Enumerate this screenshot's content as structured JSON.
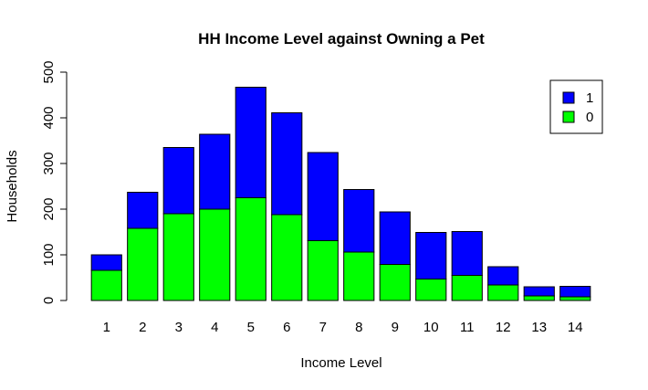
{
  "chart_data": {
    "type": "bar",
    "stacked": true,
    "title": "HH Income Level against Owning a Pet",
    "xlabel": "Income Level",
    "ylabel": "Households",
    "ylim": [
      0,
      500
    ],
    "yticks": [
      0,
      100,
      200,
      300,
      400,
      500
    ],
    "categories": [
      "1",
      "2",
      "3",
      "4",
      "5",
      "6",
      "7",
      "8",
      "9",
      "10",
      "11",
      "12",
      "13",
      "14"
    ],
    "series": [
      {
        "name": "0",
        "color": "#00ff00",
        "values": [
          66,
          158,
          190,
          200,
          225,
          188,
          131,
          106,
          79,
          47,
          55,
          34,
          10,
          8
        ]
      },
      {
        "name": "1",
        "color": "#0000ff",
        "values": [
          34,
          79,
          145,
          164,
          242,
          223,
          193,
          137,
          115,
          102,
          96,
          40,
          20,
          23
        ]
      }
    ],
    "legend": {
      "position": "top-right",
      "entries": [
        {
          "label": "1",
          "color": "#0000ff"
        },
        {
          "label": "0",
          "color": "#00ff00"
        }
      ]
    },
    "grid": false
  }
}
